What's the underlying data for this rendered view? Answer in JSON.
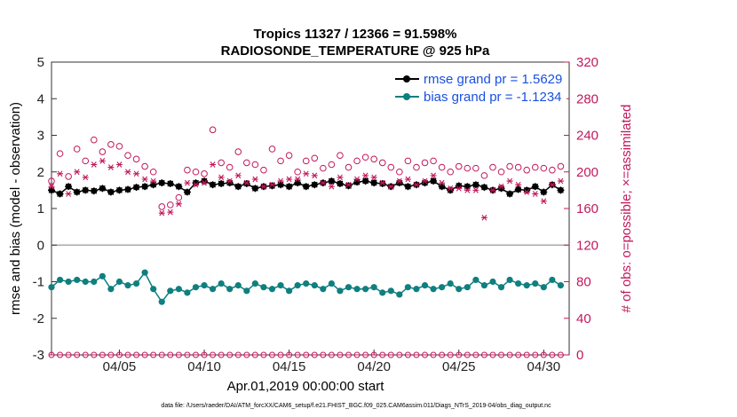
{
  "chart_data": {
    "type": "line",
    "title_line1": "Tropics 11327 / 12366 = 91.598%",
    "title_line2": "RADIOSONDE_TEMPERATURE @ 925 hPa",
    "xlabel": "Apr.01,2019 00:00:00 start",
    "ylabel": "rmse and bias (model - observation)",
    "ylabel_right": "# of obs: o=possible; ×=assimilated",
    "footnote": "data file: /Users/raeder/DAI/ATM_forcXX/CAM6_setup/f.e21.FHIST_BGC.f09_025.CAM6assim.011/Diags_NTrS_2019-04/obs_diag_output.nc",
    "xlim": [
      1.0,
      31.5
    ],
    "ylim": [
      -3,
      5
    ],
    "ylim_right": [
      0,
      320
    ],
    "yticks": [
      -3,
      -2,
      -1,
      0,
      1,
      2,
      3,
      4,
      5
    ],
    "yticks_right": [
      0,
      40,
      80,
      120,
      160,
      200,
      240,
      280,
      320
    ],
    "xticks": [
      {
        "day": 5,
        "label": "04/05"
      },
      {
        "day": 10,
        "label": "04/10"
      },
      {
        "day": 15,
        "label": "04/15"
      },
      {
        "day": 20,
        "label": "04/20"
      },
      {
        "day": 25,
        "label": "04/25"
      },
      {
        "day": 30,
        "label": "04/30"
      }
    ],
    "zero_line": 0,
    "legend": [
      {
        "label": "rmse grand pr = 1.5629",
        "color": "#000000"
      },
      {
        "label": "bias grand pr = -1.1234",
        "color": "#0f7f7f"
      }
    ],
    "x": [
      1.0,
      1.5,
      2.0,
      2.5,
      3.0,
      3.5,
      4.0,
      4.5,
      5.0,
      5.5,
      6.0,
      6.5,
      7.0,
      7.5,
      8.0,
      8.5,
      9.0,
      9.5,
      10.0,
      10.5,
      11.0,
      11.5,
      12.0,
      12.5,
      13.0,
      13.5,
      14.0,
      14.5,
      15.0,
      15.5,
      16.0,
      16.5,
      17.0,
      17.5,
      18.0,
      18.5,
      19.0,
      19.5,
      20.0,
      20.5,
      21.0,
      21.5,
      22.0,
      22.5,
      23.0,
      23.5,
      24.0,
      24.5,
      25.0,
      25.5,
      26.0,
      26.5,
      27.0,
      27.5,
      28.0,
      28.5,
      29.0,
      29.5,
      30.0,
      30.5,
      31.0
    ],
    "series": [
      {
        "name": "rmse",
        "color": "#000000",
        "values": [
          1.5,
          1.4,
          1.6,
          1.45,
          1.5,
          1.48,
          1.55,
          1.45,
          1.5,
          1.52,
          1.58,
          1.6,
          1.65,
          1.7,
          1.68,
          1.6,
          1.45,
          1.7,
          1.75,
          1.65,
          1.68,
          1.7,
          1.6,
          1.68,
          1.55,
          1.6,
          1.62,
          1.65,
          1.6,
          1.7,
          1.6,
          1.65,
          1.7,
          1.75,
          1.68,
          1.62,
          1.72,
          1.75,
          1.7,
          1.68,
          1.6,
          1.7,
          1.6,
          1.65,
          1.7,
          1.75,
          1.6,
          1.5,
          1.62,
          1.6,
          1.65,
          1.58,
          1.5,
          1.55,
          1.4,
          1.52,
          1.5,
          1.6,
          1.45,
          1.65,
          1.5
        ]
      },
      {
        "name": "bias",
        "color": "#0f7f7f",
        "values": [
          -1.15,
          -0.95,
          -1.0,
          -0.95,
          -1.0,
          -1.0,
          -0.85,
          -1.2,
          -1.0,
          -1.1,
          -1.05,
          -0.75,
          -1.2,
          -1.55,
          -1.25,
          -1.2,
          -1.3,
          -1.15,
          -1.1,
          -1.2,
          -1.05,
          -1.2,
          -1.1,
          -1.25,
          -1.05,
          -1.15,
          -1.2,
          -1.1,
          -1.25,
          -1.1,
          -1.05,
          -1.1,
          -1.2,
          -1.05,
          -1.25,
          -1.15,
          -1.2,
          -1.2,
          -1.15,
          -1.3,
          -1.25,
          -1.35,
          -1.15,
          -1.2,
          -1.1,
          -1.2,
          -1.15,
          -1.05,
          -1.2,
          -1.15,
          -0.95,
          -1.1,
          -1.0,
          -1.15,
          -0.95,
          -1.05,
          -1.1,
          -1.05,
          -1.15,
          -0.95,
          -1.1
        ]
      },
      {
        "name": "possible",
        "color": "#c2185b",
        "values": [
          190,
          220,
          195,
          225,
          212,
          235,
          222,
          230,
          228,
          218,
          214,
          206,
          200,
          162,
          164,
          172,
          202,
          200,
          198,
          246,
          210,
          205,
          222,
          210,
          208,
          202,
          225,
          212,
          218,
          200,
          212,
          215,
          204,
          208,
          218,
          205,
          212,
          216,
          214,
          210,
          205,
          200,
          212,
          205,
          210,
          212,
          205,
          200,
          206,
          204,
          204,
          196,
          205,
          200,
          206,
          205,
          202,
          205,
          204,
          202,
          206
        ]
      },
      {
        "name": "assimilated",
        "color": "#c2185b",
        "values": [
          184,
          198,
          176,
          200,
          194,
          208,
          212,
          205,
          208,
          200,
          198,
          192,
          190,
          155,
          156,
          165,
          188,
          186,
          188,
          208,
          194,
          190,
          196,
          188,
          192,
          184,
          186,
          190,
          192,
          192,
          198,
          196,
          188,
          184,
          194,
          186,
          192,
          196,
          194,
          188,
          184,
          190,
          192,
          186,
          190,
          196,
          188,
          182,
          182,
          180,
          180,
          150,
          180,
          184,
          190,
          186,
          178,
          176,
          168,
          186,
          190
        ]
      },
      {
        "name": "possible_baseline",
        "color": "#c2185b",
        "values": [
          0,
          0,
          0,
          0,
          0,
          0,
          0,
          0,
          0,
          0,
          0,
          0,
          0,
          0,
          0,
          0,
          0,
          0,
          0,
          0,
          0,
          0,
          0,
          0,
          0,
          0,
          0,
          0,
          0,
          0,
          0,
          0,
          0,
          0,
          0,
          0,
          0,
          0,
          0,
          0,
          0,
          0,
          0,
          0,
          0,
          0,
          0,
          0,
          0,
          0,
          0,
          0,
          0,
          0,
          0,
          0,
          0,
          0,
          0,
          0,
          0
        ]
      }
    ]
  }
}
